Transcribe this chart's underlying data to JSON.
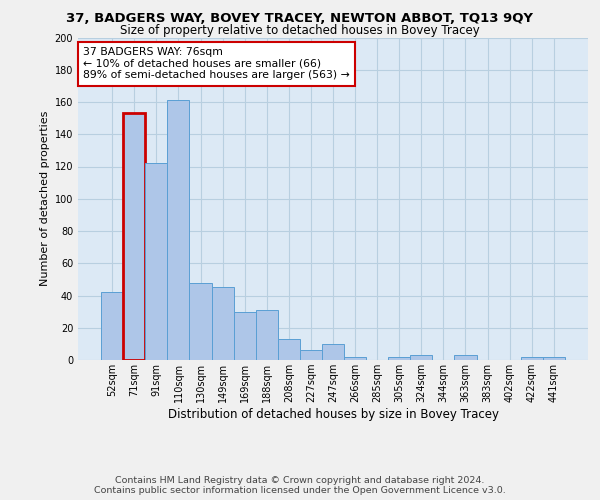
{
  "title": "37, BADGERS WAY, BOVEY TRACEY, NEWTON ABBOT, TQ13 9QY",
  "subtitle": "Size of property relative to detached houses in Bovey Tracey",
  "xlabel": "Distribution of detached houses by size in Bovey Tracey",
  "ylabel": "Number of detached properties",
  "categories": [
    "52sqm",
    "71sqm",
    "91sqm",
    "110sqm",
    "130sqm",
    "149sqm",
    "169sqm",
    "188sqm",
    "208sqm",
    "227sqm",
    "247sqm",
    "266sqm",
    "285sqm",
    "305sqm",
    "324sqm",
    "344sqm",
    "363sqm",
    "383sqm",
    "402sqm",
    "422sqm",
    "441sqm"
  ],
  "values": [
    42,
    153,
    122,
    161,
    48,
    45,
    30,
    31,
    13,
    6,
    10,
    2,
    0,
    2,
    3,
    0,
    3,
    0,
    0,
    2,
    2
  ],
  "bar_color": "#aec6e8",
  "bar_edge_color": "#5a9fd4",
  "annotation_box_text": "37 BADGERS WAY: 76sqm\n← 10% of detached houses are smaller (66)\n89% of semi-detached houses are larger (563) →",
  "annotation_box_color": "#ffffff",
  "annotation_box_edge_color": "#cc0000",
  "subject_bar_index": 1,
  "subject_bar_edge_color": "#cc0000",
  "ylim": [
    0,
    200
  ],
  "yticks": [
    0,
    20,
    40,
    60,
    80,
    100,
    120,
    140,
    160,
    180,
    200
  ],
  "grid_color": "#b8cfe0",
  "background_color": "#dce9f5",
  "fig_background_color": "#f0f0f0",
  "footer_text": "Contains HM Land Registry data © Crown copyright and database right 2024.\nContains public sector information licensed under the Open Government Licence v3.0.",
  "title_fontsize": 9.5,
  "subtitle_fontsize": 8.5,
  "xlabel_fontsize": 8.5,
  "ylabel_fontsize": 8.0,
  "tick_fontsize": 7.0,
  "annotation_fontsize": 7.8,
  "footer_fontsize": 6.8
}
